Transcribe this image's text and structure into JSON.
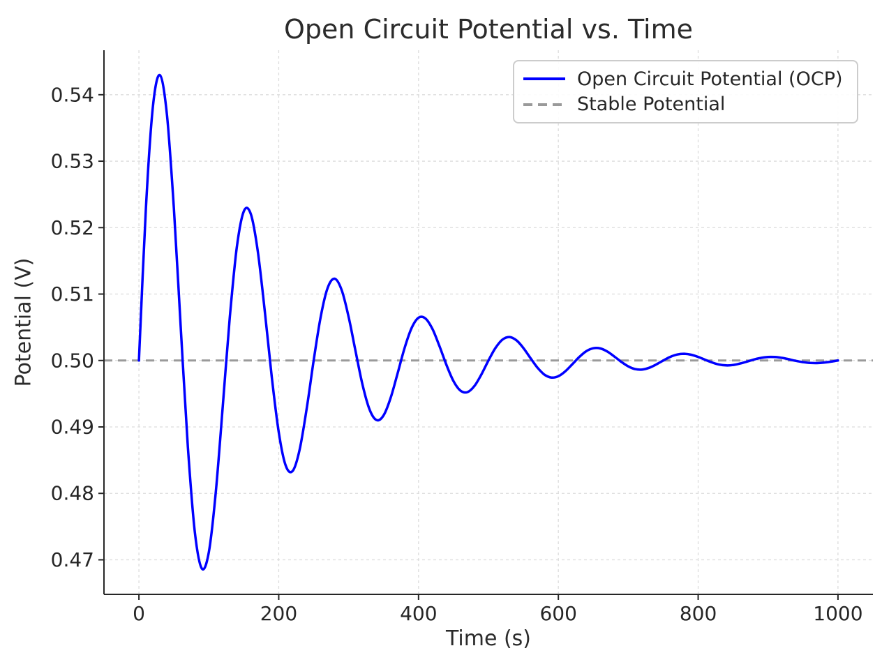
{
  "chart_data": {
    "type": "line",
    "title": "Open Circuit Potential vs. Time",
    "xlabel": "Time (s)",
    "ylabel": "Potential (V)",
    "xlim": [
      -50,
      1050
    ],
    "ylim": [
      0.4648,
      0.5467
    ],
    "x_ticks": [
      0,
      200,
      400,
      600,
      800,
      1000
    ],
    "y_ticks": [
      0.47,
      0.48,
      0.49,
      0.5,
      0.51,
      0.52,
      0.53,
      0.54
    ],
    "grid": true,
    "legend_position": "upper right",
    "stable_potential_value": 0.5,
    "series": [
      {
        "name": "Open Circuit Potential (OCP)",
        "color": "#0000ff",
        "style": "solid",
        "x": [
          0,
          10,
          20,
          30,
          40,
          50,
          60,
          70,
          80,
          90,
          100,
          110,
          120,
          130,
          140,
          150,
          160,
          170,
          180,
          190,
          200,
          210,
          220,
          230,
          240,
          250,
          260,
          270,
          280,
          290,
          300,
          310,
          320,
          330,
          340,
          350,
          360,
          370,
          380,
          390,
          400,
          410,
          420,
          430,
          440,
          450,
          460,
          470,
          480,
          490,
          500,
          510,
          520,
          530,
          540,
          550,
          560,
          570,
          580,
          590,
          600,
          610,
          620,
          630,
          640,
          650,
          660,
          670,
          680,
          690,
          700,
          710,
          720,
          730,
          740,
          750,
          760,
          770,
          780,
          790,
          800,
          810,
          820,
          830,
          840,
          850,
          860,
          870,
          880,
          890,
          900,
          910,
          920,
          930,
          940,
          950,
          960,
          970,
          980,
          990,
          1000
        ],
        "y": [
          0.5,
          0.52291,
          0.5382,
          0.54295,
          0.53704,
          0.52289,
          0.50464,
          0.48703,
          0.47418,
          0.46868,
          0.47116,
          0.48025,
          0.49318,
          0.50649,
          0.517,
          0.52246,
          0.52207,
          0.51647,
          0.50748,
          0.49758,
          0.48919,
          0.48417,
          0.48339,
          0.48663,
          0.49275,
          0.5,
          0.50657,
          0.51094,
          0.51231,
          0.51061,
          0.50656,
          0.50133,
          0.49628,
          0.4926,
          0.49103,
          0.49174,
          0.49434,
          0.49805,
          0.50186,
          0.50487,
          0.50644,
          0.50632,
          0.50472,
          0.50214,
          0.49931,
          0.4969,
          0.49546,
          0.49524,
          0.49617,
          0.49792,
          0.5,
          0.50188,
          0.50314,
          0.50353,
          0.50304,
          0.50188,
          0.50038,
          0.49894,
          0.49788,
          0.49743,
          0.49763,
          0.49838,
          0.49944,
          0.50053,
          0.5014,
          0.50184,
          0.50181,
          0.50135,
          0.50061,
          0.4998,
          0.49911,
          0.4987,
          0.49864,
          0.4989,
          0.4994,
          0.5,
          0.50054,
          0.5009,
          0.50101,
          0.50087,
          0.50054,
          0.50011,
          0.4997,
          0.49939,
          0.49926,
          0.49932,
          0.49954,
          0.49984,
          0.50015,
          0.5004,
          0.50053,
          0.50052,
          0.50039,
          0.50018,
          0.49994,
          0.49975,
          0.49963,
          0.49961,
          0.49969,
          0.49983,
          0.5
        ]
      },
      {
        "name": "Stable Potential",
        "color": "#9a9a9a",
        "style": "dashed",
        "y_value": 0.5
      }
    ],
    "colors": {
      "grid": "#dcdcdc",
      "spine": "#262626",
      "text": "#262626",
      "legend_border": "#cccccc"
    }
  }
}
